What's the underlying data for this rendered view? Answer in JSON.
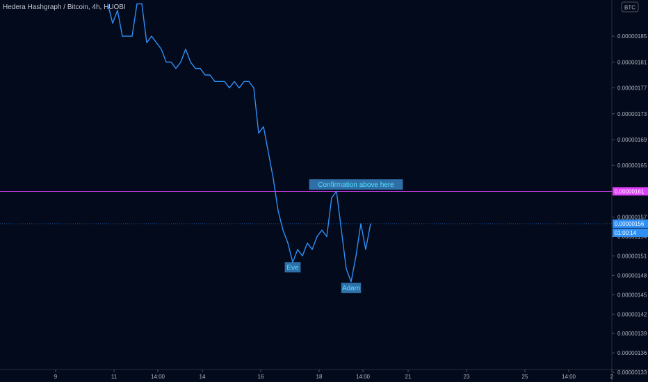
{
  "header": {
    "title": "Hedera Hashgraph / Bitcoin, 4h, HUOBI",
    "currency_badge": "BTC"
  },
  "colors": {
    "background": "#030a1c",
    "line": "#2f8ff5",
    "resistance": "#e040fb",
    "label_bg": "#2f6fa8",
    "label_text": "#55e1ff",
    "axis_text": "#b2b5be"
  },
  "chart_data": {
    "type": "line",
    "title": "Hedera Hashgraph / Bitcoin, 4h, HUOBI",
    "xlabel": "",
    "ylabel": "",
    "ylim": [
      1.315e-06,
      1.906e-06
    ],
    "x_tick_labels": [
      "9",
      "11",
      "14:00",
      "14",
      "16",
      "18",
      "14:00",
      "21",
      "23",
      "25",
      "14:00",
      "2"
    ],
    "y_tick_labels": [
      "0.00000185",
      "0.00000181",
      "0.00000177",
      "0.00000173",
      "0.00000169",
      "0.00000165",
      "0.00000161",
      "0.00000157",
      "0.00000154",
      "0.00000151",
      "0.00000148",
      "0.00000145",
      "0.00000142",
      "0.00000139",
      "0.00000136",
      "0.00000133"
    ],
    "series": [
      {
        "values": [
          1.9e-06,
          1.87e-06,
          1.89e-06,
          1.85e-06,
          1.85e-06,
          1.85e-06,
          1.9e-06,
          1.9e-06,
          1.84e-06,
          1.85e-06,
          1.84e-06,
          1.83e-06,
          1.81e-06,
          1.81e-06,
          1.8e-06,
          1.81e-06,
          1.83e-06,
          1.81e-06,
          1.8e-06,
          1.8e-06,
          1.79e-06,
          1.79e-06,
          1.78e-06,
          1.78e-06,
          1.78e-06,
          1.77e-06,
          1.78e-06,
          1.77e-06,
          1.78e-06,
          1.78e-06,
          1.77e-06,
          1.7e-06,
          1.71e-06,
          1.67e-06,
          1.63e-06,
          1.58e-06,
          1.55e-06,
          1.53e-06,
          1.5e-06,
          1.52e-06,
          1.51e-06,
          1.53e-06,
          1.52e-06,
          1.54e-06,
          1.55e-06,
          1.54e-06,
          1.6e-06,
          1.61e-06,
          1.55e-06,
          1.49e-06,
          1.47e-06,
          1.51e-06,
          1.56e-06,
          1.52e-06,
          1.56e-06
        ]
      }
    ],
    "resistance_level": 1.61e-06,
    "resistance_label": "0.00000161",
    "current_price": 1.56e-06,
    "current_price_label": "0.00000156",
    "countdown": "01:00:14",
    "annotations": [
      {
        "text": "Confirmation above here",
        "x_index": 51,
        "y": 1.62e-06
      },
      {
        "text": "Eve",
        "x_index": 38,
        "y": 1.492e-06
      },
      {
        "text": "Adam",
        "x_index": 50,
        "y": 1.46e-06
      }
    ],
    "grid": false,
    "legend": "none"
  }
}
